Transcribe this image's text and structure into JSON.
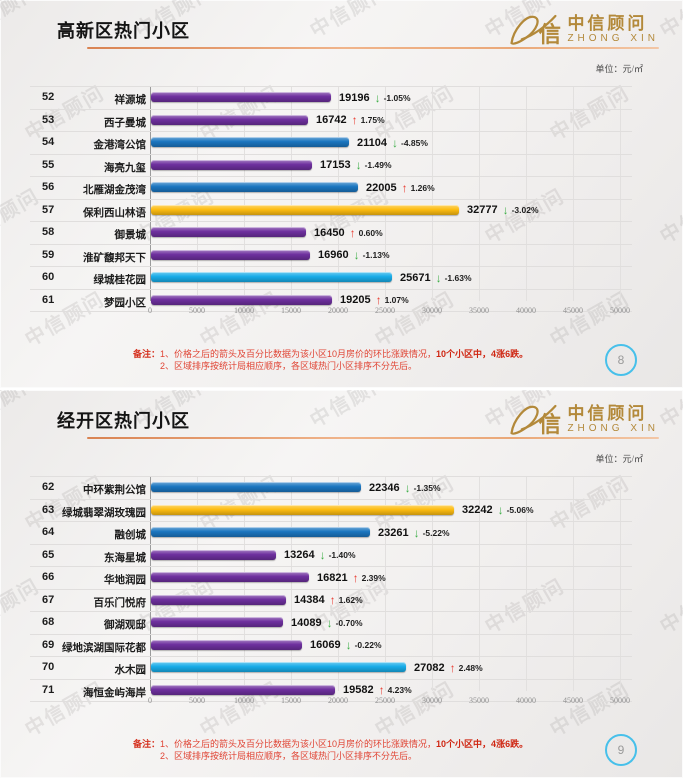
{
  "watermark_text": "中信顾问",
  "unit_label": "单位：元/㎡",
  "logo": {
    "mark": "信",
    "brand_cn": "中信顾问",
    "brand_en": "ZHONG XIN"
  },
  "notes": {
    "label": "备注：",
    "line1_normal": "1、价格之后的箭头及百分比数据为该小区10月房价的环比涨跌情况，",
    "line1_bold": "10个小区中，4涨6跌。",
    "line2": "2、区域排序按统计局相应顺序，各区域热门小区排序不分先后。"
  },
  "colors": {
    "purple": "#6e2f9e",
    "blue": "#1b76c0",
    "cyan": "#18ace8",
    "gold": "#fdbc11",
    "up": "#e8392e",
    "down": "#3faf49",
    "note_red": "#e04434",
    "circle_blue": "#47c0ea",
    "accent_line": "#e8a878",
    "brand_gold": "#b3893a"
  },
  "slides": [
    {
      "title": "高新区热门小区",
      "page_number": "8"
    },
    {
      "title": "经开区热门小区",
      "page_number": "9"
    }
  ],
  "chart_data": [
    {
      "type": "bar",
      "orientation": "horizontal",
      "title": "高新区热门小区",
      "unit": "元/㎡",
      "xlim": [
        0,
        50000
      ],
      "x_ticks": [
        0,
        5000,
        10000,
        15000,
        20000,
        25000,
        30000,
        35000,
        40000,
        45000,
        50000
      ],
      "grid": true,
      "rows": [
        {
          "rank": "52",
          "name": "祥源城",
          "value": 19196,
          "change": "-1.05%",
          "direction": "down",
          "color": "purple"
        },
        {
          "rank": "53",
          "name": "西子曼城",
          "value": 16742,
          "change": "1.75%",
          "direction": "up",
          "color": "purple"
        },
        {
          "rank": "54",
          "name": "金港湾公馆",
          "value": 21104,
          "change": "-4.85%",
          "direction": "down",
          "color": "blue"
        },
        {
          "rank": "55",
          "name": "海亮九玺",
          "value": 17153,
          "change": "-1.49%",
          "direction": "down",
          "color": "purple"
        },
        {
          "rank": "56",
          "name": "北雁湖金茂湾",
          "value": 22005,
          "change": "1.26%",
          "direction": "up",
          "color": "blue"
        },
        {
          "rank": "57",
          "name": "保利西山林语",
          "value": 32777,
          "change": "-3.02%",
          "direction": "down",
          "color": "gold"
        },
        {
          "rank": "58",
          "name": "御景城",
          "value": 16450,
          "change": "0.60%",
          "direction": "up",
          "color": "purple"
        },
        {
          "rank": "59",
          "name": "淮矿馥邦天下",
          "value": 16960,
          "change": "-1.13%",
          "direction": "down",
          "color": "purple"
        },
        {
          "rank": "60",
          "name": "绿城桂花园",
          "value": 25671,
          "change": "-1.63%",
          "direction": "down",
          "color": "cyan"
        },
        {
          "rank": "61",
          "name": "梦园小区",
          "value": 19205,
          "change": "1.07%",
          "direction": "up",
          "color": "purple"
        }
      ]
    },
    {
      "type": "bar",
      "orientation": "horizontal",
      "title": "经开区热门小区",
      "unit": "元/㎡",
      "xlim": [
        0,
        50000
      ],
      "x_ticks": [
        0,
        5000,
        10000,
        15000,
        20000,
        25000,
        30000,
        35000,
        40000,
        45000,
        50000
      ],
      "grid": true,
      "rows": [
        {
          "rank": "62",
          "name": "中环紫荆公馆",
          "value": 22346,
          "change": "-1.35%",
          "direction": "down",
          "color": "blue"
        },
        {
          "rank": "63",
          "name": "绿城翡翠湖玫瑰园",
          "value": 32242,
          "change": "-5.06%",
          "direction": "down",
          "color": "gold"
        },
        {
          "rank": "64",
          "name": "融创城",
          "value": 23261,
          "change": "-5.22%",
          "direction": "down",
          "color": "blue"
        },
        {
          "rank": "65",
          "name": "东海星城",
          "value": 13264,
          "change": "-1.40%",
          "direction": "down",
          "color": "purple"
        },
        {
          "rank": "66",
          "name": "华地润园",
          "value": 16821,
          "change": "2.39%",
          "direction": "up",
          "color": "purple"
        },
        {
          "rank": "67",
          "name": "百乐门悦府",
          "value": 14384,
          "change": "1.62%",
          "direction": "up",
          "color": "purple"
        },
        {
          "rank": "68",
          "name": "御湖观邸",
          "value": 14089,
          "change": "-0.70%",
          "direction": "down",
          "color": "purple"
        },
        {
          "rank": "69",
          "name": "绿地滨湖国际花都",
          "value": 16069,
          "change": "-0.22%",
          "direction": "down",
          "color": "purple"
        },
        {
          "rank": "70",
          "name": "水木园",
          "value": 27082,
          "change": "2.48%",
          "direction": "up",
          "color": "cyan"
        },
        {
          "rank": "71",
          "name": "海恒金屿海岸",
          "value": 19582,
          "change": "4.23%",
          "direction": "up",
          "color": "purple"
        }
      ]
    }
  ]
}
